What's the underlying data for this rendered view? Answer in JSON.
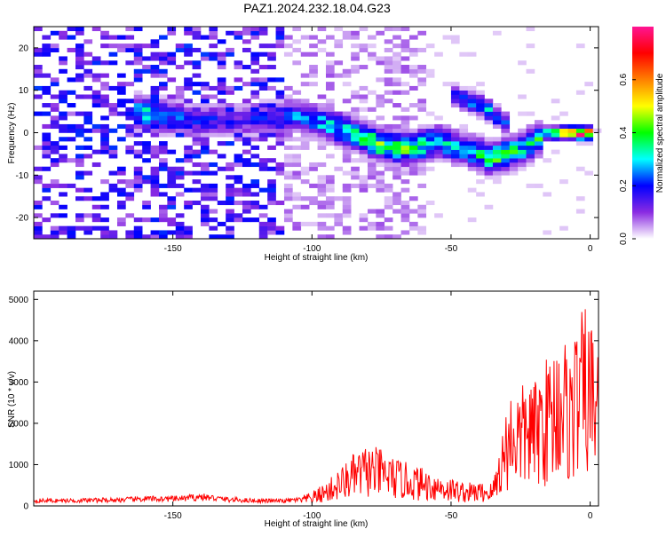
{
  "title": "PAZ1.2024.232.18.04.G23",
  "chart_data": [
    {
      "type": "heatmap",
      "xlabel": "Height of straight line (km)",
      "ylabel": "Frequency (Hz)",
      "xlim": [
        -200,
        3
      ],
      "ylim": [
        -25,
        25
      ],
      "xticks": [
        -150,
        -100,
        -50,
        0
      ],
      "xtick_labels": [
        "-150",
        "-100",
        "-50",
        "0"
      ],
      "yticks": [
        -20,
        -10,
        0,
        10,
        20
      ],
      "ytick_labels": [
        "-20",
        "-10",
        "0",
        "10",
        "20"
      ],
      "colorbar": {
        "label": "Normalized spectral amplitude",
        "range": [
          0,
          0.8
        ],
        "ticks": [
          0,
          0.2,
          0.4,
          0.6
        ],
        "tick_labels": [
          "0.0",
          "0.2",
          "0.4",
          "0.6"
        ],
        "colormap": [
          "#ffffff",
          "#8a2be2",
          "#0000ff",
          "#00ffff",
          "#00ff00",
          "#ffff00",
          "#ff8000",
          "#ff0000",
          "#ff1493"
        ]
      },
      "ridge": [
        {
          "x": -165,
          "f": 5,
          "amp": 0.35
        },
        {
          "x": -155,
          "f": 4,
          "amp": 0.3
        },
        {
          "x": -145,
          "f": 3,
          "amp": 0.22
        },
        {
          "x": -125,
          "f": 3,
          "amp": 0.15
        },
        {
          "x": -105,
          "f": 4,
          "amp": 0.25
        },
        {
          "x": -95,
          "f": 2,
          "amp": 0.3
        },
        {
          "x": -85,
          "f": 0,
          "amp": 0.38
        },
        {
          "x": -75,
          "f": -3,
          "amp": 0.42
        },
        {
          "x": -65,
          "f": -4,
          "amp": 0.4
        },
        {
          "x": -55,
          "f": -2,
          "amp": 0.35
        },
        {
          "x": -45,
          "f": -4,
          "amp": 0.3
        },
        {
          "x": -35,
          "f": -6,
          "amp": 0.42
        },
        {
          "x": -25,
          "f": -4,
          "amp": 0.35
        },
        {
          "x": -15,
          "f": 0,
          "amp": 0.4
        },
        {
          "x": -8,
          "f": 0,
          "amp": 0.55
        },
        {
          "x": -4,
          "f": 0,
          "amp": 0.78
        },
        {
          "x": 0,
          "f": 0,
          "amp": 0.6
        }
      ],
      "branch": [
        {
          "x": -50,
          "f": 9,
          "amp": 0.2
        },
        {
          "x": -38,
          "f": 6,
          "amp": 0.3
        },
        {
          "x": -30,
          "f": 2,
          "amp": 0.25
        }
      ]
    },
    {
      "type": "line",
      "xlabel": "Height of straight line (km)",
      "ylabel": "SNR (10 * v/v)",
      "xlim": [
        -200,
        3
      ],
      "ylim": [
        0,
        5200
      ],
      "xticks": [
        -150,
        -100,
        -50,
        0
      ],
      "xtick_labels": [
        "-150",
        "-100",
        "-50",
        "0"
      ],
      "yticks": [
        0,
        1000,
        2000,
        3000,
        4000,
        5000
      ],
      "ytick_labels": [
        "0",
        "1000",
        "2000",
        "3000",
        "4000",
        "5000"
      ],
      "series": [
        {
          "color": "#ff0000",
          "x": [
            -200,
            -190,
            -180,
            -170,
            -160,
            -150,
            -145,
            -140,
            -130,
            -120,
            -110,
            -105,
            -100,
            -95,
            -90,
            -85,
            -80,
            -75,
            -70,
            -65,
            -60,
            -55,
            -50,
            -45,
            -40,
            -35,
            -32,
            -30,
            -28,
            -25,
            -22,
            -20,
            -18,
            -15,
            -12,
            -10,
            -8,
            -5,
            -3,
            -1,
            0,
            2,
            3
          ],
          "y": [
            150,
            150,
            160,
            170,
            200,
            200,
            220,
            260,
            180,
            150,
            140,
            180,
            300,
            500,
            800,
            1100,
            1300,
            1200,
            1000,
            900,
            800,
            700,
            600,
            500,
            500,
            500,
            1500,
            2200,
            2600,
            2500,
            2800,
            2600,
            3000,
            3200,
            3600,
            4000,
            3200,
            3900,
            4100,
            4300,
            3900,
            4100,
            4200
          ]
        }
      ]
    }
  ]
}
